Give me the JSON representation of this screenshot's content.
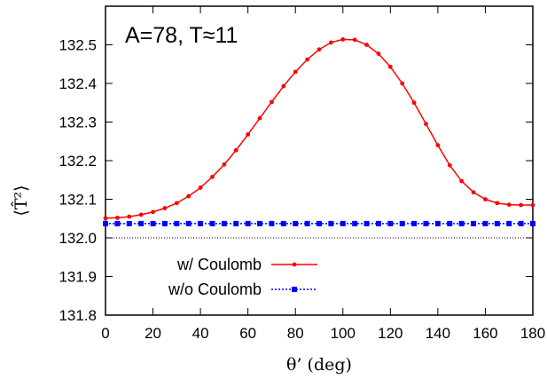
{
  "chart_data": {
    "type": "line",
    "annotation": "A=78, T≈11",
    "xlabel": "θ’ (deg)",
    "ylabel": "⟨T̂²⟩",
    "xlim": [
      0,
      180
    ],
    "ylim": [
      131.8,
      132.6
    ],
    "xticks": [
      0,
      20,
      40,
      60,
      80,
      100,
      120,
      140,
      160,
      180
    ],
    "yticks": [
      131.8,
      131.9,
      132.0,
      132.1,
      132.2,
      132.3,
      132.4,
      132.5
    ],
    "xtick_labels": [
      "0",
      "20",
      "40",
      "60",
      "80",
      "100",
      "120",
      "140",
      "160",
      "180"
    ],
    "ytick_labels": [
      "131.8",
      "131.9",
      "132.0",
      "132.1",
      "132.2",
      "132.3",
      "132.4",
      "132.5"
    ],
    "grid": false,
    "legend_position": "bottom-left",
    "reference_line": 132.0,
    "series": [
      {
        "name": "w/ Coulomb",
        "color": "#ff0000",
        "line_style": "solid",
        "marker": "circle",
        "x": [
          0,
          5,
          10,
          15,
          20,
          25,
          30,
          35,
          40,
          45,
          50,
          55,
          60,
          65,
          70,
          75,
          80,
          85,
          90,
          95,
          100,
          105,
          110,
          115,
          120,
          125,
          130,
          135,
          140,
          145,
          150,
          155,
          160,
          165,
          170,
          175,
          180
        ],
        "y": [
          132.051,
          132.052,
          132.055,
          132.06,
          132.067,
          132.077,
          132.09,
          132.108,
          132.13,
          132.158,
          132.19,
          132.227,
          132.268,
          132.31,
          132.352,
          132.393,
          132.43,
          132.462,
          132.488,
          132.506,
          132.514,
          132.513,
          132.5,
          132.477,
          132.443,
          132.4,
          132.35,
          132.295,
          132.24,
          132.188,
          132.147,
          132.118,
          132.1,
          132.09,
          132.086,
          132.085,
          132.085
        ]
      },
      {
        "name": "w/o Coulomb",
        "color": "#0000ff",
        "line_style": "dotted",
        "marker": "square",
        "x": [
          0,
          5,
          10,
          15,
          20,
          25,
          30,
          35,
          40,
          45,
          50,
          55,
          60,
          65,
          70,
          75,
          80,
          85,
          90,
          95,
          100,
          105,
          110,
          115,
          120,
          125,
          130,
          135,
          140,
          145,
          150,
          155,
          160,
          165,
          170,
          175,
          180
        ],
        "y": [
          132.037,
          132.037,
          132.037,
          132.037,
          132.037,
          132.037,
          132.037,
          132.037,
          132.037,
          132.037,
          132.037,
          132.037,
          132.037,
          132.037,
          132.037,
          132.037,
          132.037,
          132.037,
          132.037,
          132.037,
          132.037,
          132.037,
          132.037,
          132.037,
          132.037,
          132.037,
          132.037,
          132.037,
          132.037,
          132.037,
          132.037,
          132.037,
          132.037,
          132.037,
          132.037,
          132.037,
          132.037
        ]
      }
    ]
  }
}
